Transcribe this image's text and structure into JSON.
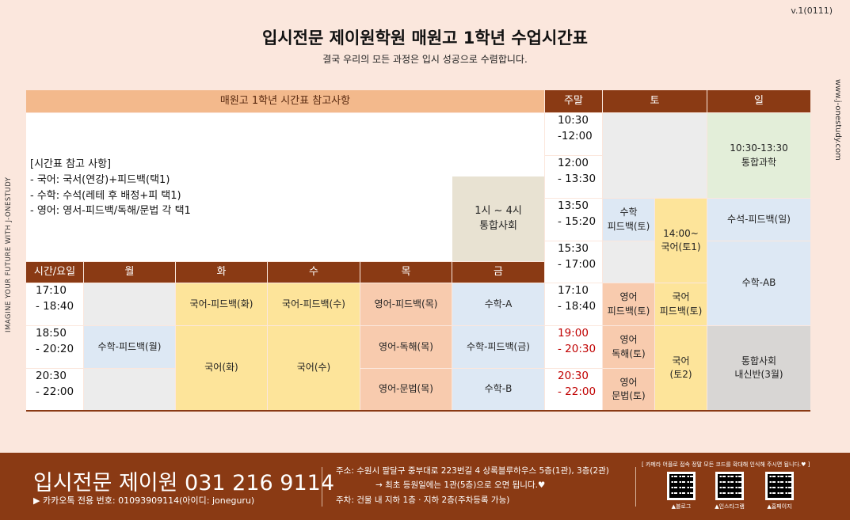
{
  "version": "v.1(0111)",
  "side_left": "IMAGINE YOUR FUTURE WITH J-ONESTUDY",
  "side_right": "www.j-onestudy.com",
  "title": "입시전문 제이원학원 매원고 1학년 수업시간표",
  "subtitle": "결국 우리의 모든 과정은 입시 성공으로 수렴합니다.",
  "colors": {
    "header": "#8a3a14",
    "header_light": "#f3b98c",
    "blue": "#dde8f4",
    "yellow": "#fde49a",
    "orange": "#f8cbae",
    "green": "#e3eed9",
    "grey": "#ececec",
    "red_time": "#c00000"
  },
  "grid": {
    "notes_header": "매원고 1학년 시간표 참고사항",
    "weekend_header": "주말",
    "sat_header": "토",
    "sun_header": "일",
    "notes": [
      "[시간표 참고 사항]",
      "- 국어: 국서(연강)+피드백(택1)",
      "- 수학: 수석(레테 후 배정+피 택1)",
      "- 영어: 영서-피드백/독해/문법 각 택1"
    ],
    "fri_social": [
      "1시 ~ 4시",
      "통합사회"
    ],
    "weekday_header": [
      "시간/요일",
      "월",
      "화",
      "수",
      "목",
      "금"
    ],
    "weekday_times": [
      [
        "17:10",
        "- 18:40"
      ],
      [
        "18:50",
        "- 20:20"
      ],
      [
        "20:30",
        "- 22:00"
      ]
    ],
    "weekday_cells": {
      "tue_1": "국어-피드백(화)",
      "wed_1": "국어-피드백(수)",
      "thu_1": "영어-피드백(목)",
      "fri_1": "수학-A",
      "mon_2": "수학-피드백(월)",
      "tue_23": "국어(화)",
      "wed_23": "국어(수)",
      "thu_2": "영어-독해(목)",
      "fri_2": "수학-피드백(금)",
      "thu_3": "영어-문법(목)",
      "fri_3": "수학-B"
    },
    "weekend_times": [
      [
        "10:30",
        "-12:00"
      ],
      [
        "12:00",
        "- 13:30"
      ],
      [
        "13:50",
        "- 15:20"
      ],
      [
        "15:30",
        "- 17:00"
      ],
      [
        "17:10",
        "- 18:40"
      ],
      [
        "19:00",
        "- 20:30"
      ],
      [
        "20:30",
        "- 22:00"
      ]
    ],
    "weekend_cells": {
      "sat_math_fb": [
        "수학",
        "피드백(토)"
      ],
      "sat_kor": [
        "14:00~",
        "국어(토1)"
      ],
      "sat_eng_fb": [
        "영어",
        "피드백(토)"
      ],
      "sat_kor_fb": [
        "국어",
        "피드백(토)"
      ],
      "sat_eng_read": [
        "영어",
        "독해(토)"
      ],
      "sat_eng_gram": [
        "영어",
        "문법(토)"
      ],
      "sat_kor2": [
        "국어",
        "(토2)"
      ],
      "sun_science": [
        "10:30-13:30",
        "통합과학"
      ],
      "sun_math_fb": "수석-피드백(일)",
      "sun_math_ab": "수학-AB",
      "sun_social": [
        "통합사회",
        "내신반(3월)"
      ]
    }
  },
  "footer": {
    "brand": "입시전문 제이원 031 216 9114",
    "kakao": "▶ 카카오톡 전용 번호: 01093909114(아이디: joneguru)",
    "address": "주소: 수원시 팔달구 중부대로 223번길 4 상록블루하우스 5층(1관), 3층(2관)",
    "address_note": "→ 최초 등원일에는 1관(5층)으로 오면 됩니다.♥",
    "parking": "주차: 건물 내 지하 1층 · 지하 2층(주차등록 가능)",
    "qr_note": "[ 카메라 어플로 접속 정말 모든 코드를 확대해 인식해 주시면 됩니다.♥ ]",
    "qr_captions": [
      "▲블로그",
      "▲인스타그램",
      "▲홈페이지"
    ]
  }
}
